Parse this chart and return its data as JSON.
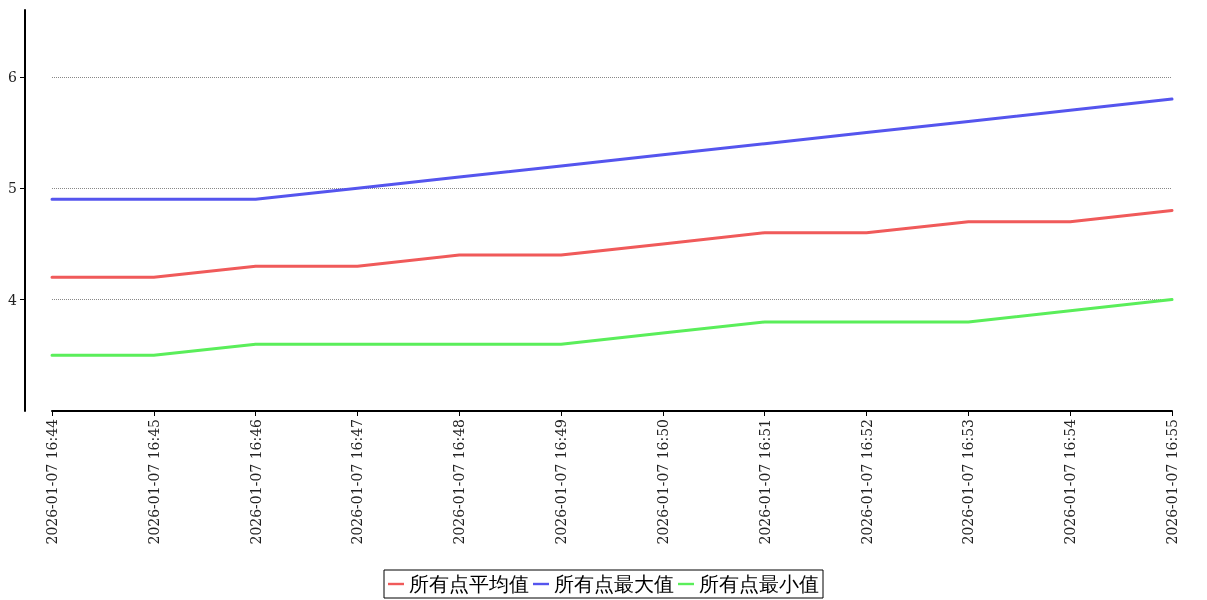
{
  "chart_data": {
    "type": "line",
    "categories": [
      "2026-01-07 16:44",
      "2026-01-07 16:45",
      "2026-01-07 16:46",
      "2026-01-07 16:47",
      "2026-01-07 16:48",
      "2026-01-07 16:49",
      "2026-01-07 16:50",
      "2026-01-07 16:51",
      "2026-01-07 16:52",
      "2026-01-07 16:53",
      "2026-01-07 16:54",
      "2026-01-07 16:55"
    ],
    "series": [
      {
        "name": "所有点平均值",
        "color": "#f05a5a",
        "values": [
          4.2,
          4.2,
          4.3,
          4.3,
          4.4,
          4.4,
          4.5,
          4.6,
          4.6,
          4.7,
          4.7,
          4.8
        ]
      },
      {
        "name": "所有点最大值",
        "color": "#5555ee",
        "values": [
          4.9,
          4.9,
          4.9,
          5.0,
          5.1,
          5.2,
          5.3,
          5.4,
          5.5,
          5.6,
          5.7,
          5.8
        ]
      },
      {
        "name": "所有点最小值",
        "color": "#5aee5a",
        "values": [
          3.5,
          3.5,
          3.6,
          3.6,
          3.6,
          3.6,
          3.7,
          3.8,
          3.8,
          3.8,
          3.9,
          4.0
        ]
      }
    ],
    "ylim": [
      3,
      6.6
    ],
    "yticks": [
      4,
      5,
      6
    ],
    "grid": "y",
    "legend": "bottom",
    "marker": "none",
    "line_style": "solid"
  }
}
